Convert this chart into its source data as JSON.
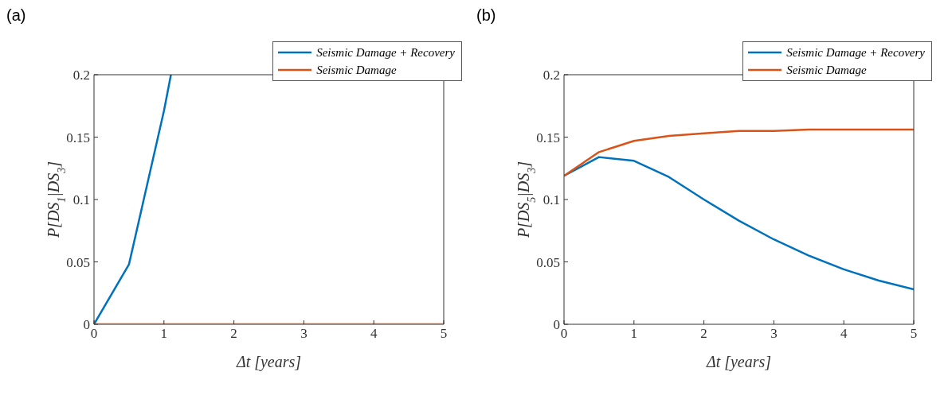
{
  "chart_data": [
    {
      "type": "line",
      "title": "(a)",
      "xlabel": "Δt [years]",
      "ylabel": "P[DS$_{1}$|DS$_{3}$]",
      "xlim": [
        0,
        5
      ],
      "xticks": [
        0,
        1,
        2,
        3,
        4,
        5
      ],
      "ylim": [
        0,
        0.2
      ],
      "yticks": [
        0,
        0.05,
        0.1,
        0.15,
        0.2
      ],
      "grid": false,
      "legend": "top right",
      "marker": "none",
      "line_style": "solid",
      "series": [
        {
          "name": "Seismic Damage + Recovery",
          "color": "#0072bd",
          "x": [
            0,
            0.5,
            1,
            1.1
          ],
          "values": [
            0,
            0.048,
            0.171,
            0.2
          ]
        },
        {
          "name": "Seismic Damage",
          "color": "#d95319",
          "x": [
            0,
            0.5,
            1,
            1.5,
            2,
            2.5,
            3,
            3.5,
            4,
            4.5,
            5
          ],
          "values": [
            0,
            0,
            0,
            0,
            0,
            0,
            0,
            0,
            0,
            0,
            0
          ]
        }
      ]
    },
    {
      "type": "line",
      "title": "(b)",
      "xlabel": "Δt [years]",
      "ylabel": "P[DS$_{5}$|DS$_{3}$]",
      "xlim": [
        0,
        5
      ],
      "xticks": [
        0,
        1,
        2,
        3,
        4,
        5
      ],
      "ylim": [
        0,
        0.2
      ],
      "yticks": [
        0,
        0.05,
        0.1,
        0.15,
        0.2
      ],
      "grid": false,
      "legend": "top right",
      "marker": "none",
      "line_style": "solid",
      "series": [
        {
          "name": "Seismic Damage + Recovery",
          "color": "#0072bd",
          "x": [
            0,
            0.5,
            1,
            1.5,
            2,
            2.5,
            3,
            3.5,
            4,
            4.5,
            5
          ],
          "values": [
            0.119,
            0.134,
            0.131,
            0.118,
            0.1,
            0.083,
            0.068,
            0.055,
            0.044,
            0.035,
            0.028
          ]
        },
        {
          "name": "Seismic Damage",
          "color": "#d95319",
          "x": [
            0,
            0.5,
            1,
            1.5,
            2,
            2.5,
            3,
            3.5,
            4,
            4.5,
            5
          ],
          "values": [
            0.119,
            0.138,
            0.147,
            0.151,
            0.153,
            0.155,
            0.155,
            0.156,
            0.156,
            0.156,
            0.156
          ]
        }
      ]
    }
  ]
}
